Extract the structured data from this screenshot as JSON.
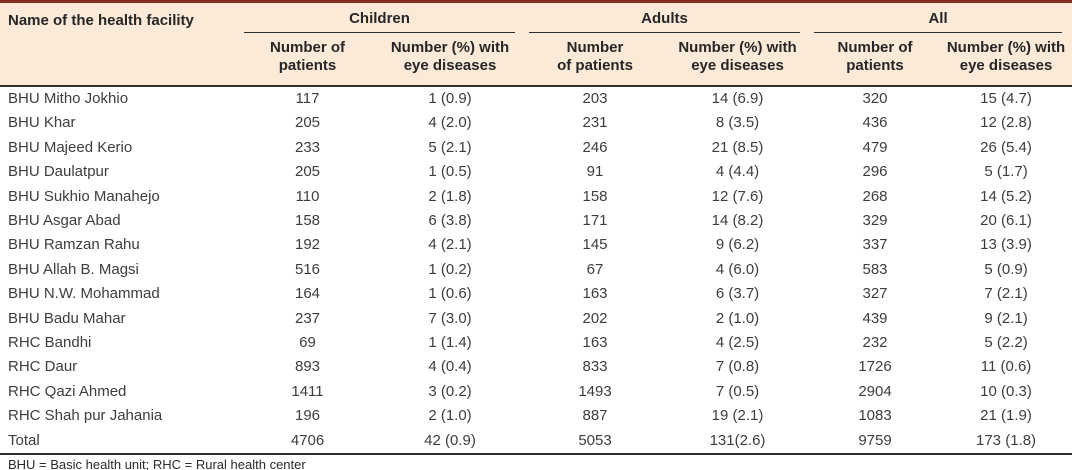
{
  "table": {
    "name_header": "Name of the health facility",
    "groups": [
      {
        "label": "Children",
        "sub": [
          "Number of\npatients",
          "Number (%) with\neye diseases"
        ]
      },
      {
        "label": "Adults",
        "sub": [
          "Number\nof patients",
          "Number (%) with\neye diseases"
        ]
      },
      {
        "label": "All",
        "sub": [
          "Number of\npatients",
          "Number (%) with\neye diseases"
        ]
      }
    ],
    "rows": [
      {
        "name": "BHU Mitho Jokhio",
        "values": [
          "117",
          "1 (0.9)",
          "203",
          "14 (6.9)",
          "320",
          "15 (4.7)"
        ]
      },
      {
        "name": "BHU Khar",
        "values": [
          "205",
          "4 (2.0)",
          "231",
          "8 (3.5)",
          "436",
          "12 (2.8)"
        ]
      },
      {
        "name": "BHU Majeed Kerio",
        "values": [
          "233",
          "5 (2.1)",
          "246",
          "21 (8.5)",
          "479",
          "26 (5.4)"
        ]
      },
      {
        "name": "BHU Daulatpur",
        "values": [
          "205",
          "1 (0.5)",
          "91",
          "4 (4.4)",
          "296",
          "5 (1.7)"
        ]
      },
      {
        "name": "BHU Sukhio Manahejo",
        "values": [
          "110",
          "2 (1.8)",
          "158",
          "12 (7.6)",
          "268",
          "14 (5.2)"
        ]
      },
      {
        "name": "BHU Asgar Abad",
        "values": [
          "158",
          "6 (3.8)",
          "171",
          "14 (8.2)",
          "329",
          "20 (6.1)"
        ]
      },
      {
        "name": "BHU Ramzan Rahu",
        "values": [
          "192",
          "4 (2.1)",
          "145",
          "9 (6.2)",
          "337",
          "13 (3.9)"
        ]
      },
      {
        "name": "BHU Allah B. Magsi",
        "values": [
          "516",
          "1 (0.2)",
          "67",
          "4 (6.0)",
          "583",
          "5 (0.9)"
        ]
      },
      {
        "name": "BHU N.W. Mohammad",
        "values": [
          "164",
          "1 (0.6)",
          "163",
          "6 (3.7)",
          "327",
          "7 (2.1)"
        ]
      },
      {
        "name": "BHU Badu Mahar",
        "values": [
          "237",
          "7 (3.0)",
          "202",
          "2 (1.0)",
          "439",
          "9 (2.1)"
        ]
      },
      {
        "name": "RHC Bandhi",
        "values": [
          "69",
          "1 (1.4)",
          "163",
          "4 (2.5)",
          "232",
          "5 (2.2)"
        ]
      },
      {
        "name": "RHC Daur",
        "values": [
          "893",
          "4 (0.4)",
          "833",
          "7 (0.8)",
          "1726",
          "11 (0.6)"
        ]
      },
      {
        "name": "RHC Qazi Ahmed",
        "values": [
          "1411",
          "3 (0.2)",
          "1493",
          "7 (0.5)",
          "2904",
          "10 (0.3)"
        ]
      },
      {
        "name": "RHC Shah pur Jahania",
        "values": [
          "196",
          "2 (1.0)",
          "887",
          "19 (2.1)",
          "1083",
          "21 (1.9)"
        ]
      }
    ],
    "total": {
      "name": "Total",
      "values": [
        "4706",
        "42 (0.9)",
        "5053",
        "131(2.6)",
        "9759",
        "173 (1.8)"
      ]
    },
    "footnote": "BHU = Basic health unit; RHC = Rural health center"
  },
  "colors": {
    "accent_rule": "#832f22",
    "header_bg": "#fcead9",
    "rule_dark": "#2e2e2e",
    "body_text": "#3d3d3d"
  }
}
